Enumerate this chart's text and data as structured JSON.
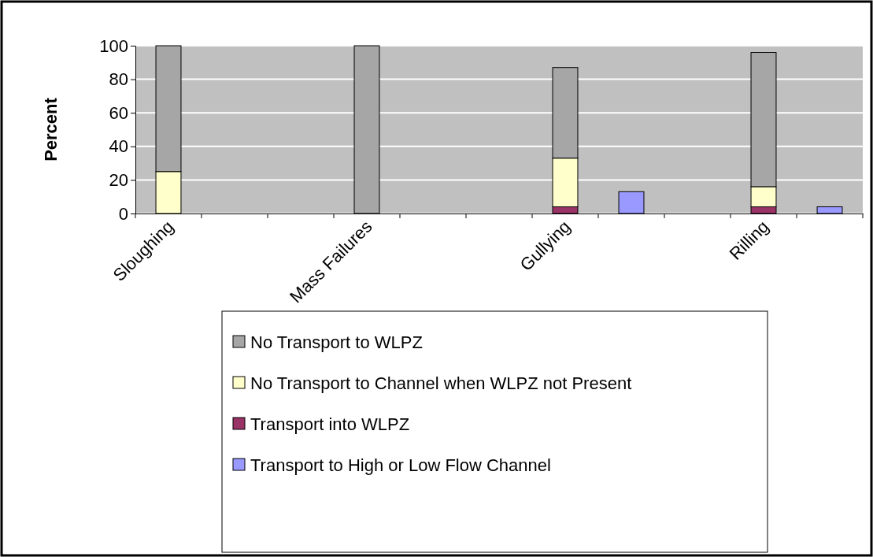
{
  "chart_data": {
    "type": "bar",
    "stacked": true,
    "ylabel": "Percent",
    "categories": [
      "Sloughing",
      null,
      null,
      "Mass Failures",
      null,
      null,
      "Gullying",
      null,
      null,
      "Rilling",
      null
    ],
    "series": [
      {
        "name": "Transport into WLPZ",
        "color": "#993366",
        "values": [
          0,
          null,
          null,
          0,
          null,
          null,
          4,
          null,
          null,
          4,
          null
        ]
      },
      {
        "name": "No Transport to Channel when WLPZ not Present",
        "color": "#ffffcc",
        "values": [
          25,
          null,
          null,
          0,
          null,
          null,
          29,
          null,
          null,
          12,
          null
        ]
      },
      {
        "name": "No Transport to WLPZ",
        "color": "#a6a6a6",
        "values": [
          75,
          null,
          null,
          100,
          null,
          null,
          54,
          null,
          null,
          80,
          null
        ]
      },
      {
        "name": "Transport to High or Low Flow Channel",
        "color": "#9999ff",
        "values": [
          null,
          null,
          null,
          null,
          null,
          null,
          null,
          13,
          null,
          null,
          4
        ]
      }
    ],
    "ylim": [
      0,
      100
    ],
    "yticks": [
      0,
      20,
      40,
      60,
      80,
      100
    ],
    "grid": "y",
    "legend": "bottom"
  }
}
